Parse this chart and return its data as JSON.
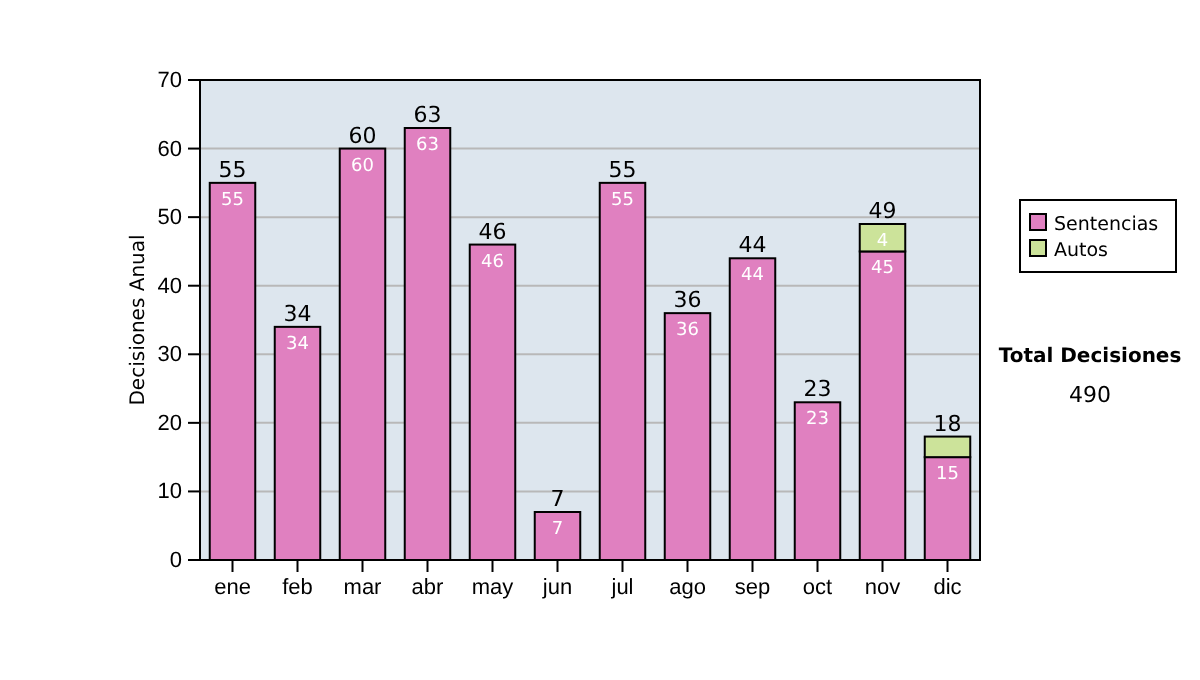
{
  "chart_data": {
    "type": "bar",
    "stacked": true,
    "ylabel": "Decisiones Anual",
    "categories": [
      "ene",
      "feb",
      "mar",
      "abr",
      "may",
      "jun",
      "jul",
      "ago",
      "sep",
      "oct",
      "nov",
      "dic"
    ],
    "series": [
      {
        "name": "Sentencias",
        "color": "#e080c0",
        "values": [
          55,
          34,
          60,
          63,
          46,
          7,
          55,
          36,
          44,
          23,
          45,
          15
        ],
        "value_labels": [
          "55",
          "34",
          "60",
          "63",
          "46",
          "7",
          "55",
          "36",
          "44",
          "23",
          "45",
          "15"
        ]
      },
      {
        "name": "Autos",
        "color": "#cce39a",
        "values": [
          null,
          null,
          null,
          null,
          null,
          null,
          null,
          null,
          null,
          null,
          4,
          3
        ],
        "value_labels": [
          null,
          null,
          null,
          null,
          null,
          null,
          null,
          null,
          null,
          null,
          "4",
          null
        ]
      }
    ],
    "totals": [
      "55",
      "34",
      "60",
      "63",
      "46",
      "7",
      "55",
      "36",
      "44",
      "23",
      "49",
      "18"
    ],
    "ylim": [
      0,
      70
    ],
    "yticks": [
      0,
      10,
      20,
      30,
      40,
      50,
      60,
      70
    ],
    "grid": "y",
    "legend": "right",
    "annotations": [
      "Total Decisiones",
      "490"
    ]
  }
}
